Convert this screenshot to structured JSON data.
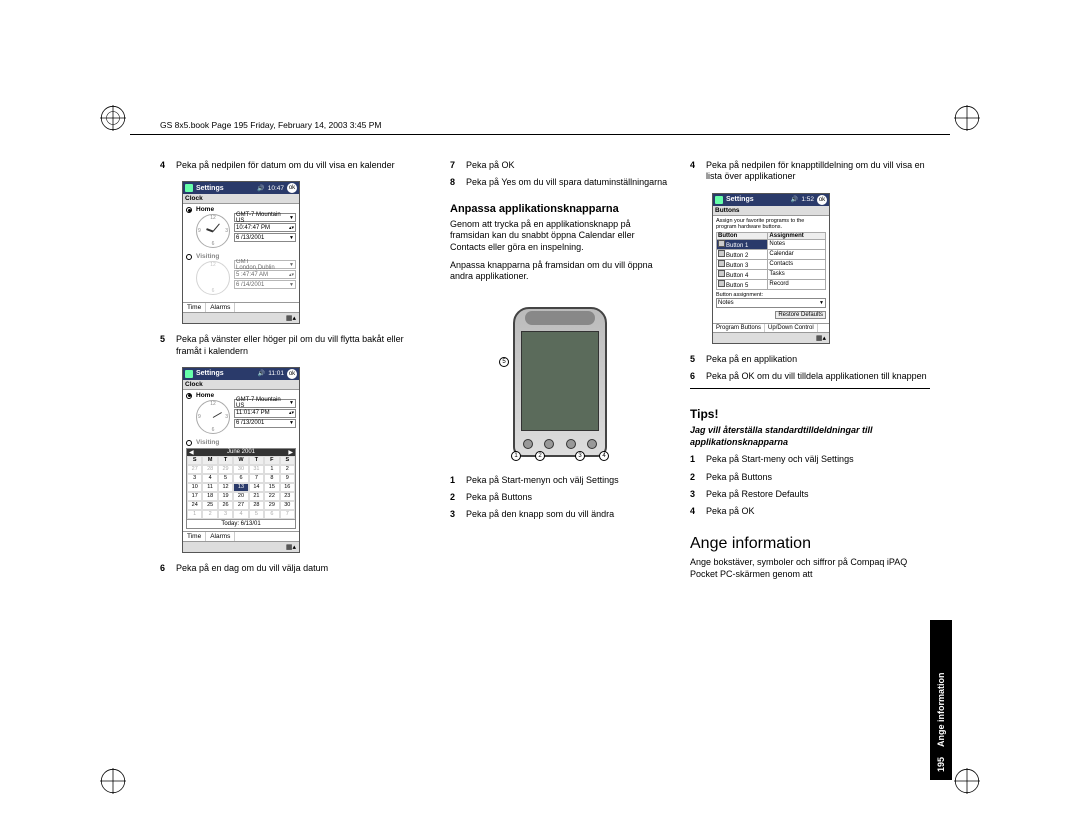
{
  "book_header": "GS 8x5.book  Page 195  Friday, February 14, 2003  3:45 PM",
  "side_tab": {
    "page_num": "195",
    "label": "Ange information"
  },
  "col1": {
    "step4": {
      "n": "4",
      "t": "Peka på nedpilen för datum om du vill visa en kalender"
    },
    "ss1": {
      "title": "Settings",
      "time": "10:47",
      "sub": "Clock",
      "home_label": "Home",
      "visiting_label": "Visiting",
      "tz1": "GMT-7 Mountain US",
      "t1": "10:47:47 PM",
      "d1": "6 /13/2001",
      "tz2": "GMT London,Dublin",
      "t2": "5 :47:47 AM",
      "d2": "6 /14/2001",
      "tab1": "Time",
      "tab2": "Alarms"
    },
    "step5": {
      "n": "5",
      "t": "Peka på vänster eller höger pil om du vill flytta bakåt eller framåt i kalendern"
    },
    "ss2": {
      "title": "Settings",
      "time": "11:01",
      "sub": "Clock",
      "home_label": "Home",
      "tz1": "GMT-7 Mountain US",
      "t1": "11:01:47 PM",
      "d1": "6 /13/2001",
      "visiting_label": "Visiting",
      "cal_month": "June 2001",
      "dow": [
        "S",
        "M",
        "T",
        "W",
        "T",
        "F",
        "S"
      ],
      "today": "Today: 6/13/01",
      "tab1": "Time",
      "tab2": "Alarms"
    },
    "step6": {
      "n": "6",
      "t": "Peka på en dag om du vill välja datum"
    }
  },
  "col2": {
    "step7": {
      "n": "7",
      "t": "Peka på OK"
    },
    "step8": {
      "n": "8",
      "t": "Peka på Yes om du vill spara datuminställningarna"
    },
    "h2a": "Anpassa applikationsknapparna",
    "body1": "Genom att trycka på en applikationsknapp på framsidan kan du snabbt öppna Calendar eller Contacts eller göra en inspelning.",
    "body2": "Anpassa knapparna på framsidan om du vill öppna andra applikationer.",
    "step1": {
      "n": "1",
      "t": "Peka på Start-menyn och välj Settings"
    },
    "step2": {
      "n": "2",
      "t": "Peka på Buttons"
    },
    "step3": {
      "n": "3",
      "t": "Peka på den knapp som du vill ändra"
    }
  },
  "col3": {
    "step4": {
      "n": "4",
      "t": "Peka på nedpilen för knapptilldelning om du vill visa en lista över applikationer"
    },
    "ss3": {
      "title": "Settings",
      "time": "1:52",
      "sub": "Buttons",
      "desc": "Assign your favorite programs to the program hardware buttons.",
      "th1": "Button",
      "th2": "Assignment",
      "rows": [
        {
          "b": "Button 1",
          "a": "Notes",
          "sel": true
        },
        {
          "b": "Button 2",
          "a": "Calendar"
        },
        {
          "b": "Button 3",
          "a": "Contacts"
        },
        {
          "b": "Button 4",
          "a": "Tasks"
        },
        {
          "b": "Button 5",
          "a": "Record"
        }
      ],
      "assign_label": "Button assignment:",
      "assign_value": "Notes",
      "restore": "Restore Defaults",
      "tab1": "Program Buttons",
      "tab2": "Up/Down Control"
    },
    "step5": {
      "n": "5",
      "t": "Peka på en applikation"
    },
    "step6": {
      "n": "6",
      "t": "Peka på OK om du vill tilldela applikationen till knappen"
    },
    "tips": "Tips!",
    "tips_sub": "Jag vill återställa standardtilldeldningar till applikationsknapparna",
    "t1": {
      "n": "1",
      "t": "Peka på Start-meny och välj Settings"
    },
    "t2": {
      "n": "2",
      "t": "Peka på Buttons"
    },
    "t3": {
      "n": "3",
      "t": "Peka på Restore Defaults"
    },
    "t4": {
      "n": "4",
      "t": "Peka på OK"
    },
    "h1": "Ange information",
    "body3": "Ange bokstäver, symboler och siffror på Compaq iPAQ Pocket PC-skärmen genom att"
  },
  "cal_cells": [
    {
      "v": "27",
      "c": "dim"
    },
    {
      "v": "28",
      "c": "dim"
    },
    {
      "v": "29",
      "c": "dim"
    },
    {
      "v": "30",
      "c": "dim"
    },
    {
      "v": "31",
      "c": "dim"
    },
    {
      "v": "1"
    },
    {
      "v": "2"
    },
    {
      "v": "3"
    },
    {
      "v": "4"
    },
    {
      "v": "5"
    },
    {
      "v": "6"
    },
    {
      "v": "7"
    },
    {
      "v": "8"
    },
    {
      "v": "9"
    },
    {
      "v": "10"
    },
    {
      "v": "11"
    },
    {
      "v": "12"
    },
    {
      "v": "13",
      "c": "sel"
    },
    {
      "v": "14"
    },
    {
      "v": "15"
    },
    {
      "v": "16"
    },
    {
      "v": "17"
    },
    {
      "v": "18"
    },
    {
      "v": "19"
    },
    {
      "v": "20"
    },
    {
      "v": "21"
    },
    {
      "v": "22"
    },
    {
      "v": "23"
    },
    {
      "v": "24"
    },
    {
      "v": "25"
    },
    {
      "v": "26"
    },
    {
      "v": "27"
    },
    {
      "v": "28"
    },
    {
      "v": "29"
    },
    {
      "v": "30"
    },
    {
      "v": "1",
      "c": "dim"
    },
    {
      "v": "2",
      "c": "dim"
    },
    {
      "v": "3",
      "c": "dim"
    },
    {
      "v": "4",
      "c": "dim"
    },
    {
      "v": "5",
      "c": "dim"
    },
    {
      "v": "6",
      "c": "dim"
    },
    {
      "v": "7",
      "c": "dim"
    }
  ]
}
